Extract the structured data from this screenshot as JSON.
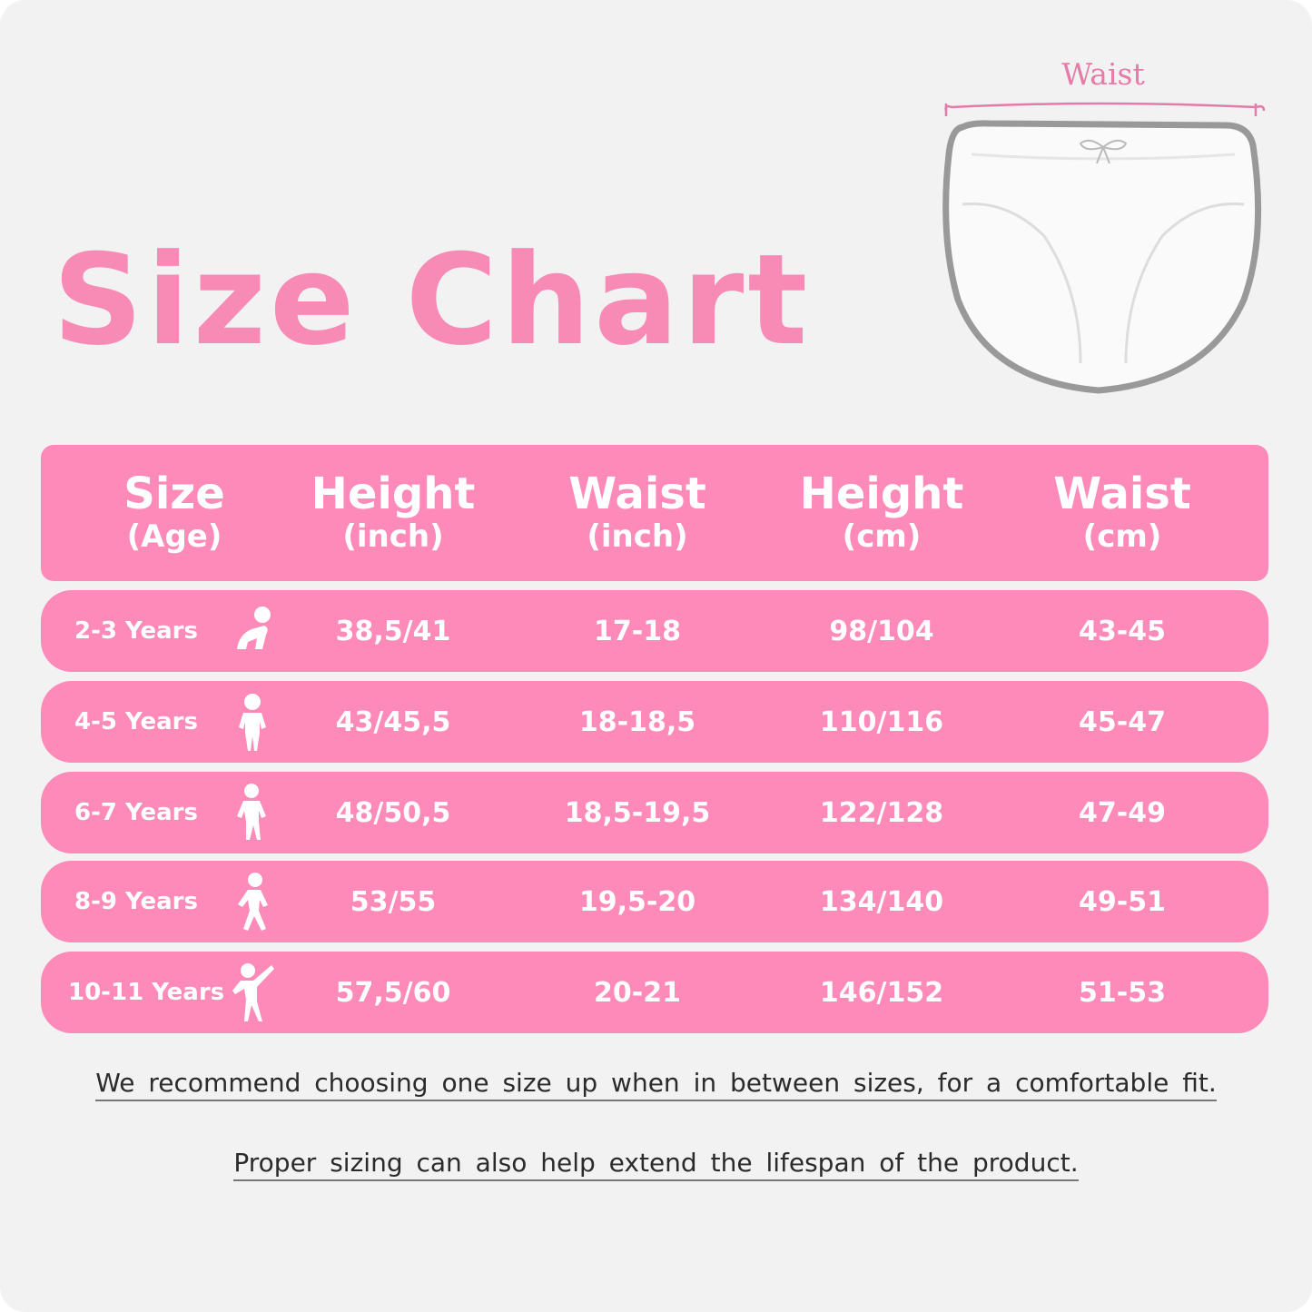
{
  "title": "Size Chart",
  "illustration": {
    "waist_label": "Waist"
  },
  "table": {
    "headers": [
      {
        "main": "Size",
        "sub": "(Age)"
      },
      {
        "main": "Height",
        "sub": "(inch)"
      },
      {
        "main": "Waist",
        "sub": "(inch)"
      },
      {
        "main": "Height",
        "sub": "(cm)"
      },
      {
        "main": "Waist",
        "sub": "(cm)"
      }
    ],
    "rows": [
      {
        "age": "2-3 Years",
        "icon": "crawling-baby-icon",
        "height_in": "38,5/41",
        "waist_in": "17-18",
        "height_cm": "98/104",
        "waist_cm": "43-45"
      },
      {
        "age": "4-5 Years",
        "icon": "toddler-icon",
        "height_in": "43/45,5",
        "waist_in": "18-18,5",
        "height_cm": "110/116",
        "waist_cm": "45-47"
      },
      {
        "age": "6-7 Years",
        "icon": "child-standing-icon",
        "height_in": "48/50,5",
        "waist_in": "18,5-19,5",
        "height_cm": "122/128",
        "waist_cm": "47-49"
      },
      {
        "age": "8-9 Years",
        "icon": "child-walking-icon",
        "height_in": "53/55",
        "waist_in": "19,5-20",
        "height_cm": "134/140",
        "waist_cm": "49-51"
      },
      {
        "age": "10-11 Years",
        "icon": "child-waving-icon",
        "height_in": "57,5/60",
        "waist_in": "20-21",
        "height_cm": "146/152",
        "waist_cm": "51-53"
      }
    ]
  },
  "notes": [
    "We recommend choosing one size up when in between sizes, for a comfortable fit.",
    "Proper sizing can also help extend the lifespan of the product."
  ],
  "colors": {
    "accent": "#fd8ab8",
    "title": "#f78bb6",
    "background": "#f2f2f2"
  }
}
